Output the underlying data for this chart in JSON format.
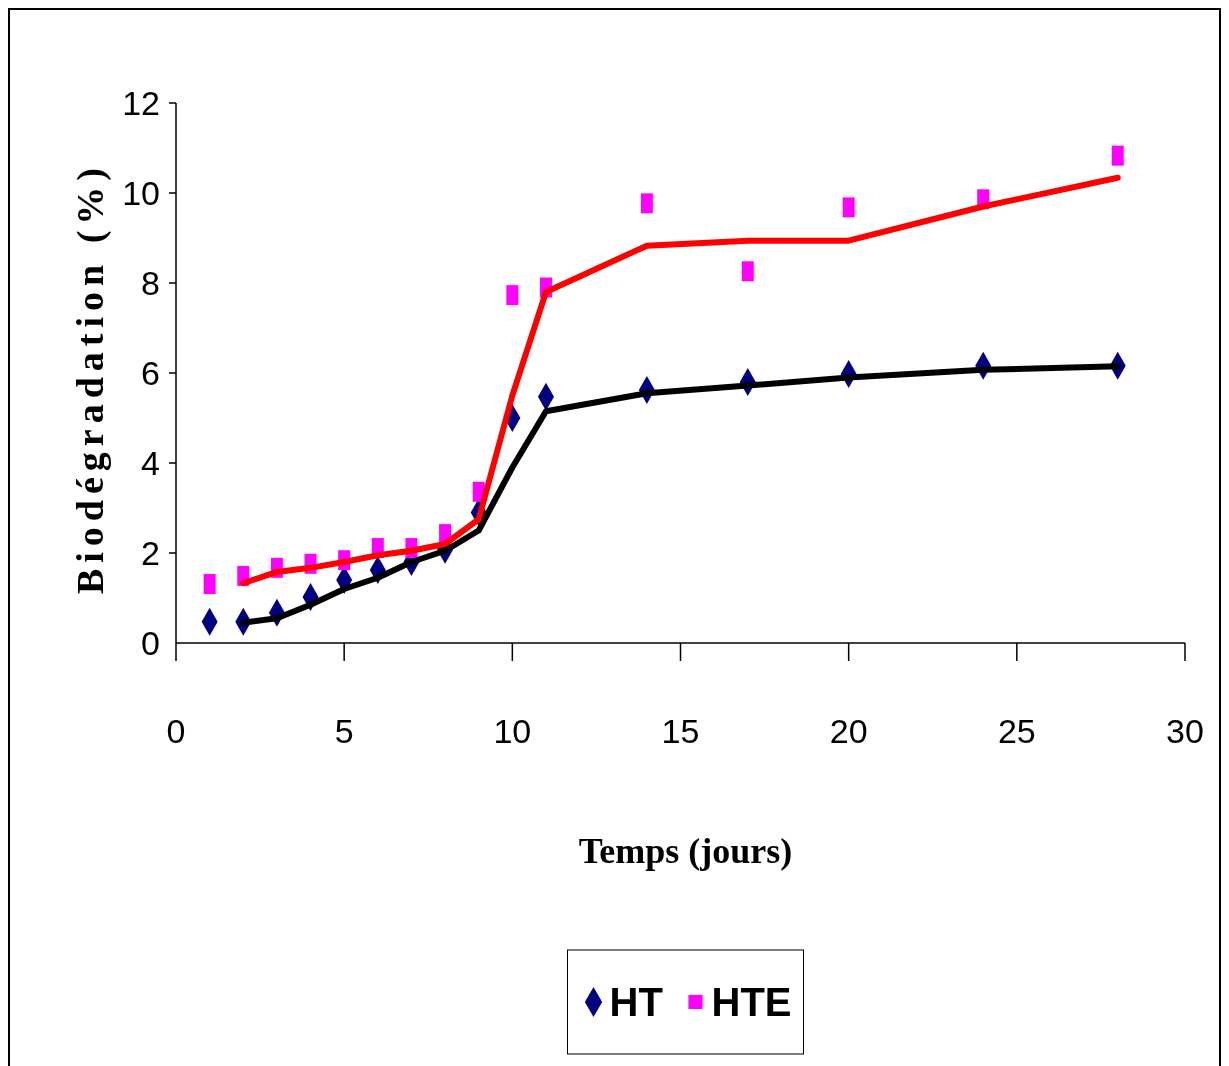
{
  "chart_data": {
    "type": "scatter",
    "xlabel": "Temps (jours)",
    "ylabel": "Biodégradation (%)",
    "xlim": [
      0,
      30
    ],
    "xticks": [
      0,
      5,
      10,
      15,
      20,
      25,
      30
    ],
    "ylim": [
      0,
      12
    ],
    "yticks": [
      0,
      2,
      4,
      6,
      8,
      10,
      12
    ],
    "grid": false,
    "legend": "bottom",
    "series": [
      {
        "name": "HT",
        "type": "scatter",
        "marker": "diamond",
        "color": "#000080",
        "x": [
          1,
          2,
          3,
          4,
          5,
          6,
          7,
          8,
          9,
          10,
          11,
          14,
          17,
          20,
          24,
          28
        ],
        "values": [
          0.47,
          0.47,
          0.67,
          1.02,
          1.4,
          1.62,
          1.8,
          2.07,
          2.9,
          5.0,
          5.47,
          5.62,
          5.8,
          5.98,
          6.16,
          6.16
        ]
      },
      {
        "name": "HTE",
        "type": "scatter",
        "marker": "square",
        "color": "#ff00ff",
        "x": [
          1,
          2,
          3,
          4,
          5,
          6,
          7,
          8,
          9,
          10,
          11,
          14,
          17,
          20,
          24,
          28
        ],
        "values": [
          1.31,
          1.49,
          1.67,
          1.76,
          1.84,
          2.11,
          2.11,
          2.42,
          3.36,
          7.73,
          7.9,
          9.77,
          8.26,
          9.68,
          9.86,
          10.83
        ]
      },
      {
        "type": "line",
        "marker": "none",
        "color": "#000000",
        "x": [
          2,
          3,
          4,
          5,
          6,
          7,
          8,
          9,
          10,
          11,
          14,
          17,
          20,
          24,
          28
        ],
        "values": [
          0.45,
          0.55,
          0.85,
          1.2,
          1.45,
          1.8,
          2.05,
          2.5,
          3.9,
          5.15,
          5.55,
          5.72,
          5.9,
          6.07,
          6.15
        ]
      },
      {
        "type": "line",
        "marker": "none",
        "color": "#ff0000",
        "x": [
          2,
          3,
          4,
          5,
          6,
          7,
          8,
          9,
          10,
          11,
          14,
          17,
          20,
          24,
          28
        ],
        "values": [
          1.33,
          1.58,
          1.67,
          1.8,
          1.95,
          2.05,
          2.2,
          2.75,
          5.5,
          7.8,
          8.83,
          8.94,
          8.94,
          9.7,
          10.34
        ]
      }
    ]
  }
}
